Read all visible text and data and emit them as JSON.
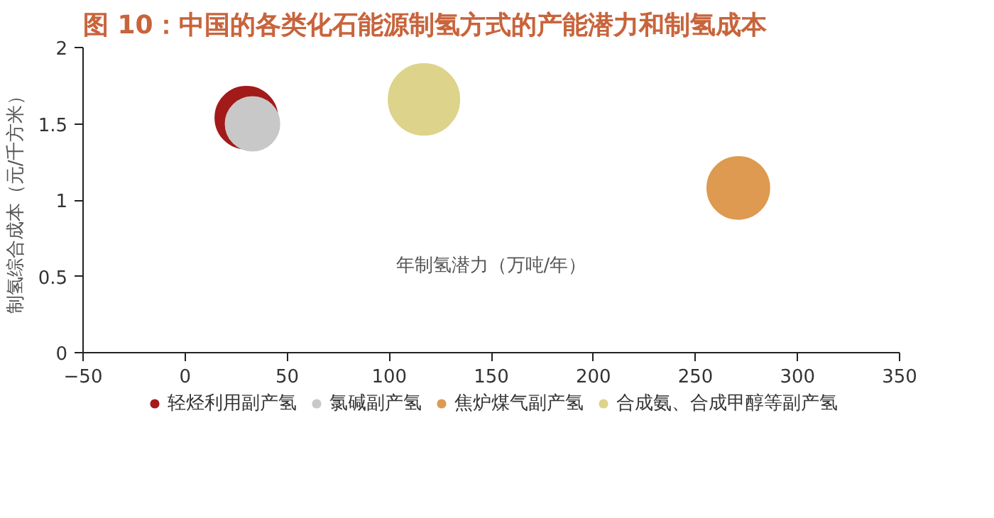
{
  "chart_data": {
    "type": "bubble",
    "title": "图 10：中国的各类化石能源制氢方式的产能潜力和制氢成本",
    "xlabel": "年制氢潜力（万吨/年）",
    "ylabel": "制氢综合成本（元/千方米）",
    "xlim": [
      -50,
      350
    ],
    "xticks": [
      -50,
      0,
      50,
      100,
      150,
      200,
      250,
      300,
      350
    ],
    "ylim": [
      0,
      2
    ],
    "yticks": [
      0,
      0.5,
      1,
      1.5,
      2
    ],
    "grid": false,
    "legend": "bottom",
    "series": [
      {
        "name": "轻烃利用副产氢",
        "color": "#a31a1a",
        "x": [
          30
        ],
        "values": [
          1.54
        ],
        "sizes": [
          0.77
        ]
      },
      {
        "name": "氯碱副产氢",
        "color": "#c8c8c8",
        "x": [
          33
        ],
        "values": [
          1.5
        ],
        "sizes": [
          0.58
        ]
      },
      {
        "name": "焦炉煤气副产氢",
        "color": "#dd9a50",
        "x": [
          271
        ],
        "values": [
          1.08
        ],
        "sizes": [
          0.77
        ]
      },
      {
        "name": "合成氨、合成甲醇等副产氢",
        "color": "#ddd38a",
        "x": [
          117
        ],
        "values": [
          1.66
        ],
        "sizes": [
          1
        ]
      }
    ]
  }
}
